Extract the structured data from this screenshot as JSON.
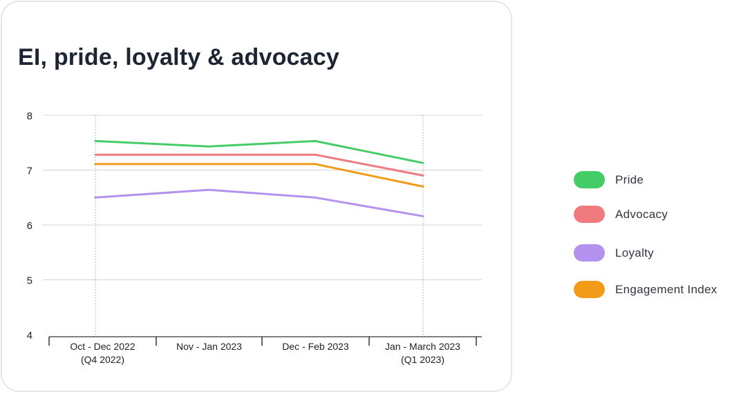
{
  "title": "EI, pride, loyalty & advocacy",
  "chart_data": {
    "type": "line",
    "title": "EI, pride, loyalty & advocacy",
    "categories": [
      [
        "Oct - Dec 2022",
        "(Q4 2022)"
      ],
      [
        "Nov - Jan 2023"
      ],
      [
        "Dec - Feb 2023"
      ],
      [
        "Jan - March 2023",
        "(Q1 2023)"
      ]
    ],
    "ylim": [
      4,
      8
    ],
    "yticks": [
      "8",
      "7",
      "6",
      "5",
      "4"
    ],
    "grid": true,
    "legend_position": "right",
    "series": [
      {
        "name": "Pride",
        "color": "#44cc66",
        "values": [
          7.53,
          7.43,
          7.53,
          7.13
        ]
      },
      {
        "name": "Advocacy",
        "color": "#f07a7e",
        "values": [
          7.28,
          7.28,
          7.28,
          6.9
        ]
      },
      {
        "name": "Loyalty",
        "color": "#b491ee",
        "values": [
          6.5,
          6.64,
          6.5,
          6.16
        ]
      },
      {
        "name": "Engagement Index",
        "color": "#f29b18",
        "values": [
          7.11,
          7.11,
          7.11,
          6.7
        ]
      }
    ]
  }
}
